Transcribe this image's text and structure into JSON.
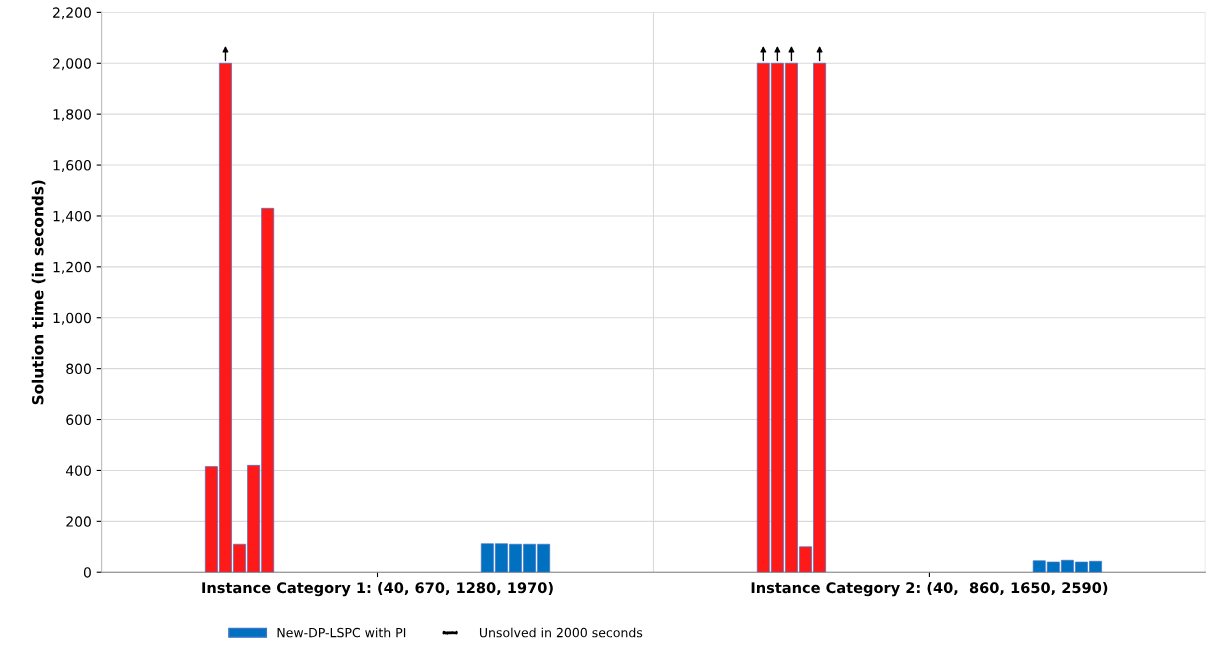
{
  "chart_data": {
    "type": "bar",
    "ylabel": "Solution time (in seconds)",
    "categories": [
      "Instance Category 1: (40, 670, 1280, 1970)",
      "Instance Category 2: (40,  860, 1650, 2590)"
    ],
    "series": [
      {
        "color": "#ff1a1a",
        "values": [
          415,
          2000
        ]
      },
      {
        "color": "#ff1a1a",
        "values": [
          2000,
          2000
        ]
      },
      {
        "color": "#ff1a1a",
        "values": [
          110,
          2000
        ]
      },
      {
        "color": "#ff1a1a",
        "values": [
          420,
          100
        ]
      },
      {
        "color": "#ff1a1a",
        "values": [
          1430,
          2000
        ]
      },
      {
        "name": "New-DP-LSPC with PI",
        "color": "#0070c0",
        "values": [
          112,
          45
        ]
      },
      {
        "color": "#0070c0",
        "values": [
          112,
          40
        ]
      },
      {
        "color": "#0070c0",
        "values": [
          110,
          47
        ]
      },
      {
        "color": "#0070c0",
        "values": [
          110,
          40
        ]
      },
      {
        "color": "#0070c0",
        "values": [
          110,
          43
        ]
      }
    ],
    "ylim": [
      0,
      2200
    ],
    "yticks": [
      0,
      200,
      400,
      600,
      800,
      {
        "value": 1000,
        "label": "1,000"
      },
      {
        "value": 1200,
        "label": "1,200"
      },
      {
        "value": 1400,
        "label": "1,400"
      },
      {
        "value": 1600,
        "label": "1,600"
      },
      {
        "value": 1800,
        "label": "1,800"
      },
      {
        "value": 2000,
        "label": "2,000"
      },
      {
        "value": 2200,
        "label": "2,200"
      }
    ],
    "grid": true,
    "legend": "bottom",
    "annotations": [
      "Unsolved in 2000 seconds"
    ]
  }
}
